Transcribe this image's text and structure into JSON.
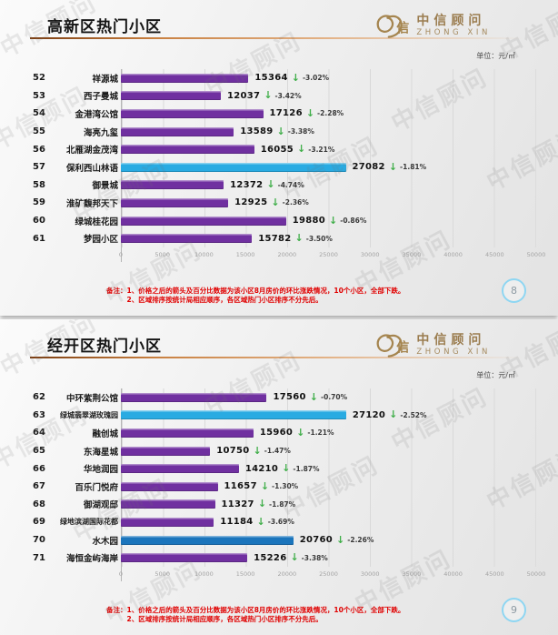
{
  "header": {
    "logo_cn": "中信顾问",
    "logo_en": "ZHONG XIN",
    "unit_label": "单位：元/㎡"
  },
  "watermark_text": "中信顾问",
  "arrow_glyph": "↓",
  "notes": {
    "prefix": "备注：",
    "line1": "1、价格之后的箭头及百分比数据为该小区8月房价的环比涨跌情况，10个小区，全部下跌。",
    "line2": "2、区域排序按统计局相应顺序，各区域热门小区排序不分先后。"
  },
  "colors": {
    "purple": "#7030A0",
    "highlight_cyan": "#29ABE2",
    "highlight_blue": "#1B75BC",
    "arrow_green": "#3FAE49",
    "note_red": "#E00000",
    "page_circle_blue": "#8ED6F2",
    "title_line_orange": "#C87F3F"
  },
  "slides": [
    {
      "title": "高新区热门小区",
      "page": "8"
    },
    {
      "title": "经开区热门小区",
      "page": "9"
    }
  ],
  "chart_data": [
    {
      "type": "bar",
      "orientation": "horizontal",
      "title": "高新区热门小区",
      "unit": "元/㎡",
      "xlim": [
        0,
        50000
      ],
      "x_ticks": [
        0,
        5000,
        10000,
        15000,
        20000,
        25000,
        30000,
        35000,
        40000,
        45000,
        50000
      ],
      "grid": true,
      "rows": [
        {
          "rank": "52",
          "name": "祥源城",
          "value": 15364,
          "change": "-3.02%",
          "color": "purple"
        },
        {
          "rank": "53",
          "name": "西子曼城",
          "value": 12037,
          "change": "-3.42%",
          "color": "purple"
        },
        {
          "rank": "54",
          "name": "金港湾公馆",
          "value": 17126,
          "change": "-2.28%",
          "color": "purple"
        },
        {
          "rank": "55",
          "name": "海亮九玺",
          "value": 13589,
          "change": "-3.38%",
          "color": "purple"
        },
        {
          "rank": "56",
          "name": "北雁湖金茂湾",
          "value": 16055,
          "change": "-3.21%",
          "color": "purple"
        },
        {
          "rank": "57",
          "name": "保利西山林语",
          "value": 27082,
          "change": "-1.81%",
          "color": "highlight_cyan"
        },
        {
          "rank": "58",
          "name": "御景城",
          "value": 12372,
          "change": "-4.74%",
          "color": "purple"
        },
        {
          "rank": "59",
          "name": "淮矿馥邦天下",
          "value": 12925,
          "change": "-2.36%",
          "color": "purple"
        },
        {
          "rank": "60",
          "name": "绿城桂花园",
          "value": 19880,
          "change": "-0.86%",
          "color": "purple"
        },
        {
          "rank": "61",
          "name": "梦园小区",
          "value": 15782,
          "change": "-3.50%",
          "color": "purple"
        }
      ]
    },
    {
      "type": "bar",
      "orientation": "horizontal",
      "title": "经开区热门小区",
      "unit": "元/㎡",
      "xlim": [
        0,
        50000
      ],
      "x_ticks": [
        0,
        5000,
        10000,
        15000,
        20000,
        25000,
        30000,
        35000,
        40000,
        45000,
        50000
      ],
      "grid": true,
      "rows": [
        {
          "rank": "62",
          "name": "中环紫荆公馆",
          "value": 17560,
          "change": "-0.70%",
          "color": "purple"
        },
        {
          "rank": "63",
          "name": "绿城翡翠湖玫瑰园",
          "value": 27120,
          "change": "-2.52%",
          "color": "highlight_cyan"
        },
        {
          "rank": "64",
          "name": "融创城",
          "value": 15960,
          "change": "-1.21%",
          "color": "purple"
        },
        {
          "rank": "65",
          "name": "东海星城",
          "value": 10750,
          "change": "-1.47%",
          "color": "purple"
        },
        {
          "rank": "66",
          "name": "华地润园",
          "value": 14210,
          "change": "-1.87%",
          "color": "purple"
        },
        {
          "rank": "67",
          "name": "百乐门悦府",
          "value": 11657,
          "change": "-1.30%",
          "color": "purple"
        },
        {
          "rank": "68",
          "name": "御湖观邸",
          "value": 11327,
          "change": "-1.87%",
          "color": "purple"
        },
        {
          "rank": "69",
          "name": "绿地滨湖国际花都",
          "value": 11184,
          "change": "-3.69%",
          "color": "purple"
        },
        {
          "rank": "70",
          "name": "水木园",
          "value": 20760,
          "change": "-2.26%",
          "color": "highlight_blue"
        },
        {
          "rank": "71",
          "name": "海恒金屿海岸",
          "value": 15226,
          "change": "-3.38%",
          "color": "purple"
        }
      ]
    }
  ]
}
